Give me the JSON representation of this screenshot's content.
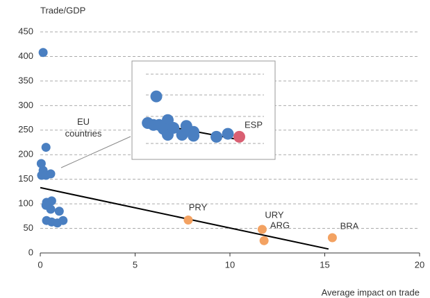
{
  "chart_data": [
    {
      "type": "scatter",
      "y_label": "Trade/GDP",
      "x_label": "Average impact on trade",
      "xlim": [
        0,
        20
      ],
      "xticks": [
        0,
        5,
        10,
        15,
        20
      ],
      "ylim": [
        0,
        450
      ],
      "yticks": [
        0,
        50,
        100,
        150,
        200,
        250,
        300,
        350,
        400,
        450
      ],
      "grid": true,
      "series": [
        {
          "color": "#4a7fc1",
          "x": [
            0.15,
            0.3,
            0.05,
            0.15,
            0.07,
            0.3,
            0.55,
            0.33,
            0.6,
            0.3,
            0.55,
            1.0,
            0.33,
            0.6,
            0.9,
            1.2
          ],
          "values": [
            408,
            215,
            182,
            168,
            158,
            158,
            161,
            103,
            106,
            97,
            89,
            85,
            66,
            63,
            61,
            66
          ]
        },
        {
          "color": "#f3a262",
          "x": [
            7.8,
            11.7,
            11.8,
            15.4
          ],
          "values": [
            67,
            48,
            25,
            31
          ]
        }
      ],
      "trendline": {
        "color": "#000000",
        "x": [
          0,
          15.2
        ],
        "values": [
          133,
          8
        ]
      },
      "annotations": [
        "EU countries",
        "PRY",
        "URY",
        "ARG",
        "BRA"
      ]
    },
    {
      "type": "scatter",
      "xlim": [
        0,
        10
      ],
      "ylim": [
        0,
        10
      ],
      "series": [
        {
          "color": "#4a7fc1",
          "x": [
            1.7,
            1.1,
            1.5,
            1.9,
            2.5,
            2.5,
            2.2,
            2.9,
            3.5,
            3.8,
            3.9,
            4.3,
            4.3,
            5.9,
            6.7
          ],
          "values": [
            6.4,
            3.7,
            3.5,
            3.5,
            4.0,
            2.5,
            3.1,
            3.2,
            2.5,
            3.4,
            3.0,
            2.8,
            2.4,
            2.3,
            2.6
          ]
        },
        {
          "color": "#d95f72",
          "x": [
            7.5
          ],
          "values": [
            2.3
          ]
        }
      ],
      "trendline": {
        "color": "#000000",
        "x": [
          1.2,
          7.5
        ],
        "values": [
          3.7,
          2.0
        ]
      },
      "annotations": [
        "ESP"
      ]
    }
  ]
}
